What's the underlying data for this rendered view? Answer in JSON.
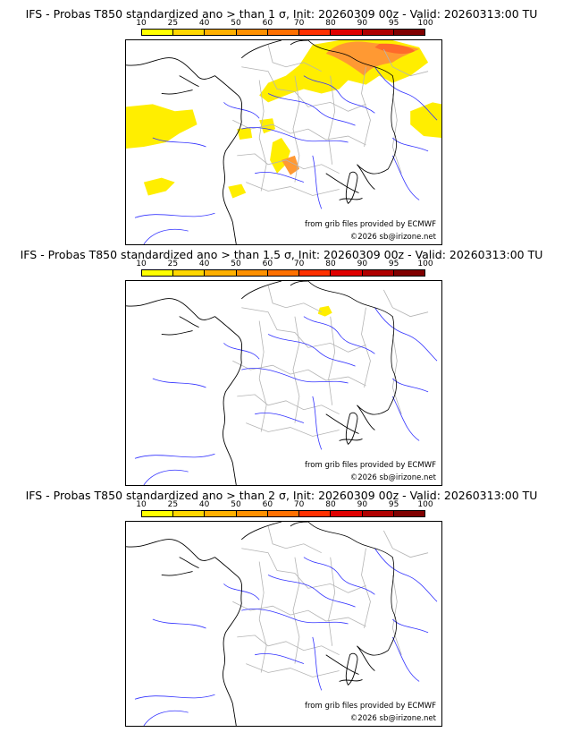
{
  "panels": [
    {
      "title": "IFS - Probas T850  standardized ano > than 1 σ, Init: 20260309 00z - Valid: 20260313:00 TU",
      "credit_line1": "from grib files provided by ECMWF",
      "credit_line2": "©2026 sb@irizone.net",
      "anomaly_shading": "extensive"
    },
    {
      "title": "IFS - Probas T850  standardized ano > than 1.5 σ, Init: 20260309 00z - Valid: 20260313:00 TU",
      "credit_line1": "from grib files provided by ECMWF",
      "credit_line2": "©2026 sb@irizone.net",
      "anomaly_shading": "small"
    },
    {
      "title": "IFS - Probas T850  standardized ano > than 2 σ, Init: 20260309 00z - Valid: 20260313:00 TU",
      "credit_line1": "from grib files provided by ECMWF",
      "credit_line2": "©2026 sb@irizone.net",
      "anomaly_shading": "none"
    }
  ],
  "colorbar": {
    "ticks": [
      "10",
      "25",
      "40",
      "50",
      "60",
      "70",
      "80",
      "90",
      "95",
      "100"
    ],
    "colors": [
      "#ffff00",
      "#ffd700",
      "#ffb000",
      "#ff9000",
      "#ff7000",
      "#ff3000",
      "#e00000",
      "#b00000",
      "#800000"
    ]
  },
  "map_colors": {
    "coastline": "#000000",
    "rivers": "#3333ff",
    "admin_borders": "#b4b4b4",
    "prob_low": "#ffee00",
    "prob_mid": "#ff9933",
    "prob_high": "#ff6a2a"
  }
}
